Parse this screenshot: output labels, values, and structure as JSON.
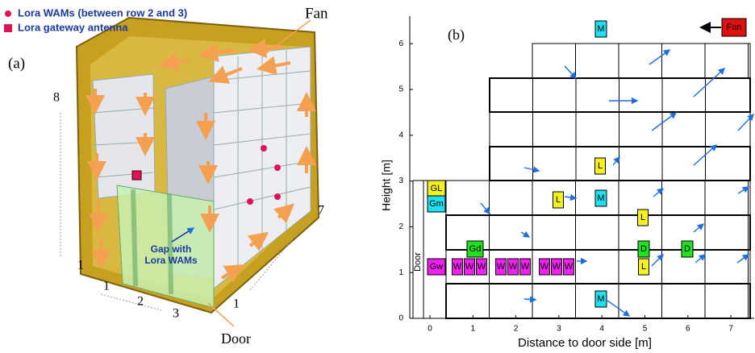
{
  "panel_a": {
    "label": "(a)",
    "legend": [
      {
        "text": "Lora WAMs (between row 2 and 3)",
        "marker": "dot",
        "color": "#e0105a"
      },
      {
        "text": "Lora gateway antenna",
        "marker": "square",
        "color": "#e0105a"
      }
    ],
    "fan": "Fan",
    "door": "Door",
    "gap": [
      "Gap with",
      "Lora WAMs"
    ],
    "dimensions": [
      "8",
      "1",
      "1",
      "2",
      "3",
      "7",
      "1"
    ]
  },
  "panel_b": {
    "label": "(b)",
    "x_label": "Distance to door side [m]",
    "y_label": "Height [m]",
    "xticks": [
      0,
      1,
      2,
      3,
      4,
      5,
      6,
      7
    ],
    "yticks": [
      0,
      1,
      2,
      3,
      4,
      5,
      6
    ],
    "door": "Door",
    "fan": "Fan",
    "tags": [
      {
        "text": "M",
        "color": "#1ee0f0"
      },
      {
        "text": "GL",
        "color": "#f5f020"
      },
      {
        "text": "Gm",
        "color": "#1ee0f0"
      },
      {
        "text": "Gw",
        "color": "#f020f0"
      },
      {
        "text": "W",
        "color": "#f020f0"
      },
      {
        "text": "W",
        "color": "#f020f0"
      },
      {
        "text": "W",
        "color": "#f020f0"
      },
      {
        "text": "W",
        "color": "#f020f0"
      },
      {
        "text": "W",
        "color": "#f020f0"
      },
      {
        "text": "W",
        "color": "#f020f0"
      },
      {
        "text": "W",
        "color": "#f020f0"
      },
      {
        "text": "W",
        "color": "#f020f0"
      },
      {
        "text": "W",
        "color": "#f020f0"
      },
      {
        "text": "Gd",
        "color": "#20e020"
      },
      {
        "text": "L",
        "color": "#f5f020"
      },
      {
        "text": "M",
        "color": "#1ee0f0"
      },
      {
        "text": "L",
        "color": "#f5f020"
      },
      {
        "text": "L",
        "color": "#f5f020"
      },
      {
        "text": "D",
        "color": "#20e020"
      },
      {
        "text": "L",
        "color": "#f5f020"
      },
      {
        "text": "D",
        "color": "#20e020"
      },
      {
        "text": "M",
        "color": "#1ee0f0"
      }
    ]
  }
}
